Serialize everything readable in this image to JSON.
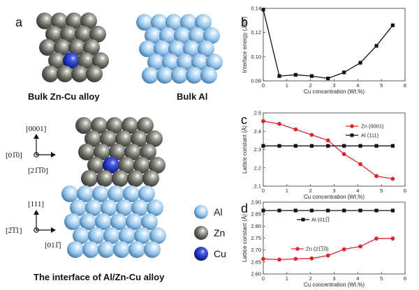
{
  "panel_labels": {
    "a": "a",
    "b": "b",
    "c": "c",
    "d": "d"
  },
  "structures": {
    "bulk_zncu_title": "Bulk Zn-Cu alloy",
    "bulk_al_title": "Bulk Al",
    "interface_title": "The interface of Al/Zn-Cu alloy",
    "upper_directions": [
      "[0001]",
      "[01̅0]",
      "[21̅1̅0]"
    ],
    "lower_directions": [
      "[111]",
      "[2̅1̅1]",
      "[011̅]"
    ],
    "element_legend": [
      "Al",
      "Zn",
      "Cu"
    ],
    "colors": {
      "Al": "#8fc0e8",
      "Zn": "#7a7a72",
      "Cu": "#2233bb"
    }
  },
  "chart_data": [
    {
      "type": "line",
      "panel": "b",
      "xlabel": "Cu concentration (Wt.%)",
      "ylabel": "Interface energy (J/m²)",
      "xlim": [
        0,
        6
      ],
      "ylim": [
        0.08,
        0.14
      ],
      "xticks": [
        "0",
        "1",
        "2",
        "3",
        "4",
        "5",
        "6"
      ],
      "yticks": [
        "0.08",
        "0.10",
        "0.12",
        "0.14"
      ],
      "series": [
        {
          "name": "",
          "color": "#111111",
          "marker": "square",
          "x": [
            0,
            0.68,
            1.37,
            2.05,
            2.74,
            3.42,
            4.11,
            4.79,
            5.48
          ],
          "y": [
            0.139,
            0.084,
            0.085,
            0.084,
            0.082,
            0.087,
            0.095,
            0.109,
            0.126
          ]
        }
      ]
    },
    {
      "type": "line",
      "panel": "c",
      "xlabel": "Cu concentration (Wt.%)",
      "ylabel": "Lattice constant (Å)",
      "xlim": [
        0,
        6
      ],
      "ylim": [
        2.1,
        2.5
      ],
      "xticks": [
        "0",
        "1",
        "2",
        "3",
        "4",
        "5",
        "6"
      ],
      "yticks": [
        "2.1",
        "2.2",
        "2.3",
        "2.4",
        "2.5"
      ],
      "legend_position": "top-right",
      "series": [
        {
          "name": "Zn (0001)",
          "color": "#e0242b",
          "marker": "circle",
          "x": [
            0,
            0.68,
            1.37,
            2.05,
            2.74,
            3.42,
            4.11,
            4.79,
            5.48
          ],
          "y": [
            2.455,
            2.44,
            2.41,
            2.38,
            2.35,
            2.275,
            2.22,
            2.155,
            2.14
          ]
        },
        {
          "name": "Al (111)",
          "color": "#111111",
          "marker": "square",
          "x": [
            0,
            0.68,
            1.37,
            2.05,
            2.74,
            3.42,
            4.11,
            4.79,
            5.48
          ],
          "y": [
            2.32,
            2.32,
            2.32,
            2.32,
            2.32,
            2.32,
            2.32,
            2.32,
            2.32
          ]
        }
      ]
    },
    {
      "type": "line",
      "panel": "d",
      "xlabel": "Cu concentration (Wt.%)",
      "ylabel": "Lattice constant (Å)",
      "xlim": [
        0,
        6
      ],
      "ylim": [
        2.6,
        2.9
      ],
      "xticks": [
        "0",
        "1",
        "2",
        "3",
        "4",
        "5",
        "6"
      ],
      "yticks": [
        "2.60",
        "2.65",
        "2.70",
        "2.75",
        "2.80",
        "2.85",
        "2.90"
      ],
      "legend_position": "inline",
      "series": [
        {
          "name": "Al (011̅)",
          "color": "#111111",
          "marker": "square",
          "x": [
            0,
            0.68,
            1.37,
            2.05,
            2.74,
            3.42,
            4.11,
            4.79,
            5.48
          ],
          "y": [
            2.865,
            2.865,
            2.865,
            2.865,
            2.865,
            2.865,
            2.865,
            2.865,
            2.865
          ]
        },
        {
          "name": "Zn (21̅1̅0)",
          "color": "#e0242b",
          "marker": "circle",
          "x": [
            0,
            0.68,
            1.37,
            2.05,
            2.74,
            3.42,
            4.11,
            4.79,
            5.48
          ],
          "y": [
            2.663,
            2.66,
            2.663,
            2.665,
            2.677,
            2.703,
            2.715,
            2.748,
            2.748
          ]
        }
      ]
    }
  ]
}
